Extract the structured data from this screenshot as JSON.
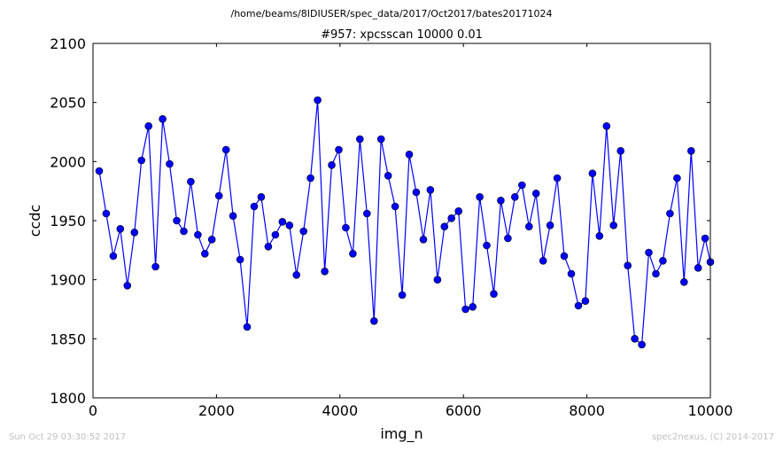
{
  "figure": {
    "suptitle": "/home/beams/8IDIUSER/spec_data/2017/Oct2017/bates20171024",
    "footer_left": "Sun Oct 29 03:30:52 2017",
    "footer_right": "spec2nexus, (C) 2014-2017"
  },
  "chart_data": {
    "type": "line",
    "title": "#957: xpcsscan 10000 0.01",
    "xlabel": "img_n",
    "ylabel": "ccdc",
    "xlim": [
      0,
      10000
    ],
    "ylim": [
      1800,
      2100
    ],
    "xticks": [
      0,
      2000,
      4000,
      6000,
      8000,
      10000
    ],
    "yticks": [
      1800,
      1850,
      1900,
      1950,
      2000,
      2050,
      2100
    ],
    "grid": false,
    "marker": "circle",
    "line_color": "#0000ff",
    "marker_color": "#0000ff",
    "series": [
      {
        "x": [
          100,
          214,
          328,
          442,
          557,
          671,
          785,
          899,
          1013,
          1127,
          1241,
          1356,
          1470,
          1584,
          1698,
          1812,
          1926,
          2040,
          2155,
          2269,
          2383,
          2497,
          2611,
          2725,
          2839,
          2954,
          3068,
          3182,
          3296,
          3410,
          3524,
          3638,
          3753,
          3867,
          3981,
          4095,
          4209,
          4323,
          4437,
          4552,
          4666,
          4780,
          4894,
          5008,
          5122,
          5236,
          5351,
          5465,
          5579,
          5693,
          5807,
          5921,
          6035,
          6150,
          6264,
          6378,
          6492,
          6606,
          6720,
          6834,
          6949,
          7063,
          7177,
          7291,
          7405,
          7519,
          7633,
          7748,
          7862,
          7976,
          8090,
          8204,
          8318,
          8432,
          8547,
          8661,
          8775,
          8889,
          9003,
          9117,
          9231,
          9346,
          9460,
          9574,
          9688,
          9802,
          9916,
          10000
        ],
        "y": [
          1992,
          1956,
          1920,
          1943,
          1895,
          1940,
          2001,
          2030,
          1911,
          2036,
          1998,
          1950,
          1941,
          1983,
          1938,
          1922,
          1934,
          1971,
          2010,
          1954,
          1917,
          1860,
          1962,
          1970,
          1928,
          1938,
          1949,
          1946,
          1904,
          1941,
          1986,
          2052,
          1907,
          1997,
          2010,
          1944,
          1922,
          2019,
          1956,
          1865,
          2019,
          1988,
          1962,
          1887,
          2006,
          1974,
          1934,
          1976,
          1900,
          1945,
          1952,
          1958,
          1875,
          1877,
          1970,
          1929,
          1888,
          1967,
          1935,
          1970,
          1980,
          1945,
          1973,
          1916,
          1946,
          1986,
          1920,
          1905,
          1878,
          1882,
          1990,
          1937,
          2030,
          1946,
          2009,
          1912,
          1850,
          1845,
          1923,
          1905,
          1916,
          1956,
          1986,
          1898,
          2009,
          1910,
          1935,
          1915
        ]
      }
    ]
  }
}
